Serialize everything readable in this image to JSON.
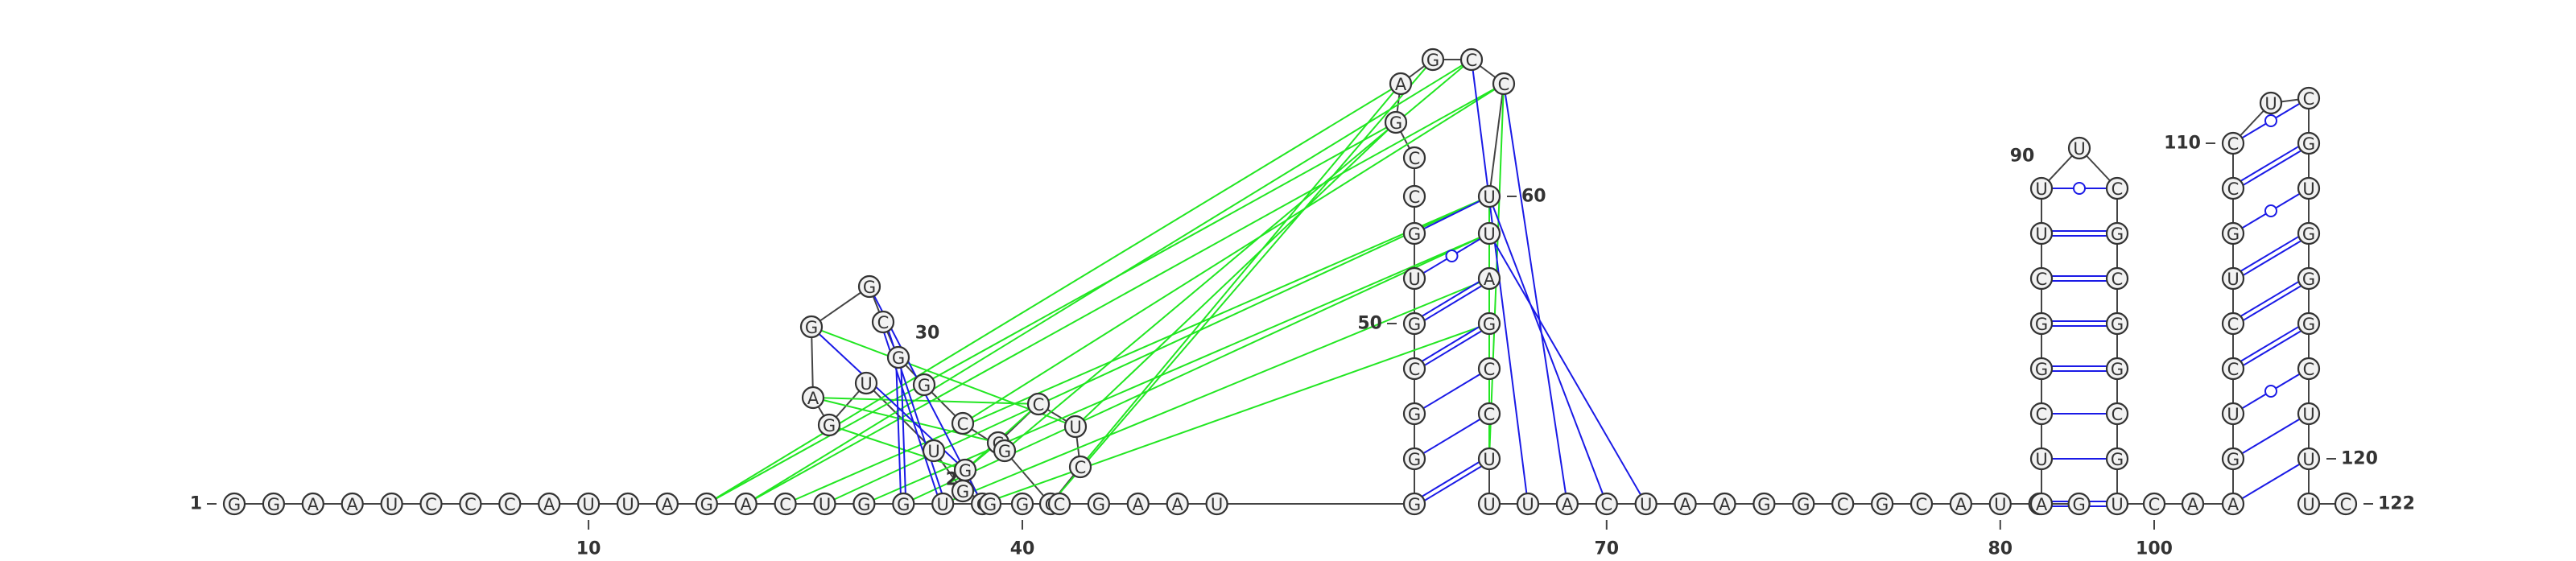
{
  "sequence": "GGAAUCCCAUUAGACUGGUCGGAGUUGGGCGGAGAAGAGCUGAACGGGGUACUUGGCGGGCGGCUACCGCUGCAGCGUUGAAGAGAGACGAGAAAUCUGAGUGAGGGUGGGUCGAAGCCAGGUCCG",
  "display_sequence": [
    "G",
    "G",
    "A",
    "A",
    "U",
    "C",
    "C",
    "C",
    "A",
    "U",
    "U",
    "A",
    "G",
    "A",
    "C",
    "U",
    "G",
    "G",
    "U",
    "C",
    "G",
    "C",
    "C",
    "U",
    "C",
    "C",
    "G",
    "C",
    "G",
    "G",
    "C",
    "G",
    "G",
    "A",
    "G",
    "U",
    "U",
    "G",
    "G",
    "G",
    "C",
    "G",
    "A",
    "A",
    "U",
    "G",
    "G",
    "G",
    "C",
    "G",
    "U",
    "G",
    "C",
    "C",
    "G",
    "A",
    "G",
    "C",
    "C",
    "U",
    "U",
    "A",
    "G",
    "C",
    "C",
    "U",
    "U",
    "U",
    "A",
    "C",
    "U",
    "A",
    "A",
    "G",
    "G",
    "C",
    "G",
    "C",
    "A",
    "U",
    "C",
    "G",
    "A",
    "U",
    "C",
    "G",
    "G",
    "C",
    "U",
    "U",
    "U",
    "C",
    "G",
    "C",
    "G",
    "G",
    "C",
    "G",
    "U",
    "C",
    "A",
    "A",
    "G",
    "U",
    "C",
    "C",
    "U",
    "G",
    "C",
    "C",
    "U",
    "C",
    "G",
    "U",
    "G",
    "G",
    "G",
    "C",
    "U",
    "U",
    "U",
    "C"
  ],
  "position_labels": [
    {
      "num": 1,
      "text": "1",
      "dash": "right"
    },
    {
      "num": 10,
      "text": "10",
      "dash": "tick"
    },
    {
      "num": 20,
      "text": "20",
      "dash": "none"
    },
    {
      "num": 30,
      "text": "30",
      "dash": "none"
    },
    {
      "num": 40,
      "text": "40",
      "dash": "tick"
    },
    {
      "num": 50,
      "text": "50",
      "dash": "right"
    },
    {
      "num": 60,
      "text": "60",
      "dash": "left"
    },
    {
      "num": 70,
      "text": "70",
      "dash": "tick"
    },
    {
      "num": 80,
      "text": "80",
      "dash": "tick"
    },
    {
      "num": 90,
      "text": "90",
      "dash": "none"
    },
    {
      "num": 100,
      "text": "100",
      "dash": "tick"
    },
    {
      "num": 110,
      "text": "110",
      "dash": "right"
    },
    {
      "num": 120,
      "text": "120",
      "dash": "left"
    },
    {
      "num": 122,
      "text": "122",
      "dash": "left"
    }
  ],
  "colors": {
    "canonical_pair": "#1a1ae6",
    "tertiary_interaction": "#22e622",
    "nucleotide_fill": "#f2f2f2",
    "nucleotide_stroke": "#333333",
    "backbone": "#444444"
  },
  "base_pairs": [
    {
      "i": 46,
      "j": 66,
      "type": "canonical",
      "bond": "double"
    },
    {
      "i": 47,
      "j": 65,
      "type": "canonical",
      "bond": "single"
    },
    {
      "i": 48,
      "j": 64,
      "type": "canonical",
      "bond": "single"
    },
    {
      "i": 49,
      "j": 63,
      "type": "canonical",
      "bond": "double"
    },
    {
      "i": 50,
      "j": 62,
      "type": "canonical",
      "bond": "double"
    },
    {
      "i": 51,
      "j": 61,
      "type": "wobble",
      "bond": "circle"
    },
    {
      "i": 52,
      "j": 60,
      "type": "canonical",
      "bond": "single"
    },
    {
      "i": 83,
      "j": 99,
      "type": "canonical",
      "bond": "double"
    },
    {
      "i": 84,
      "j": 98,
      "type": "canonical",
      "bond": "single"
    },
    {
      "i": 85,
      "j": 97,
      "type": "canonical",
      "bond": "single"
    },
    {
      "i": 86,
      "j": 96,
      "type": "canonical",
      "bond": "double"
    },
    {
      "i": 87,
      "j": 95,
      "type": "canonical",
      "bond": "double"
    },
    {
      "i": 88,
      "j": 94,
      "type": "canonical",
      "bond": "double"
    },
    {
      "i": 89,
      "j": 93,
      "type": "canonical",
      "bond": "double"
    },
    {
      "i": 90,
      "j": 92,
      "type": "wobble",
      "bond": "circle"
    },
    {
      "i": 102,
      "j": 120,
      "type": "canonical",
      "bond": "single"
    },
    {
      "i": 103,
      "j": 119,
      "type": "canonical",
      "bond": "single"
    },
    {
      "i": 104,
      "j": 118,
      "type": "wobble",
      "bond": "circle"
    },
    {
      "i": 105,
      "j": 117,
      "type": "canonical",
      "bond": "double"
    },
    {
      "i": 106,
      "j": 116,
      "type": "canonical",
      "bond": "double"
    },
    {
      "i": 107,
      "j": 115,
      "type": "canonical",
      "bond": "double"
    },
    {
      "i": 108,
      "j": 114,
      "type": "wobble",
      "bond": "circle"
    },
    {
      "i": 109,
      "j": 113,
      "type": "canonical",
      "bond": "double"
    },
    {
      "i": 110,
      "j": 112,
      "type": "wobble",
      "bond": "circle"
    },
    {
      "i": 18,
      "j": 30,
      "type": "canonical",
      "bond": "double"
    },
    {
      "i": 19,
      "j": 31,
      "type": "canonical",
      "bond": "double"
    },
    {
      "i": 20,
      "j": 32,
      "type": "canonical",
      "bond": "single"
    },
    {
      "i": 21,
      "j": 33,
      "type": "canonical",
      "bond": "single"
    },
    {
      "i": 58,
      "j": 68,
      "type": "canonical",
      "bond": "single"
    },
    {
      "i": 59,
      "j": 69,
      "type": "canonical",
      "bond": "single"
    },
    {
      "i": 60,
      "j": 70,
      "type": "canonical",
      "bond": "single"
    },
    {
      "i": 61,
      "j": 71,
      "type": "canonical",
      "bond": "single"
    }
  ],
  "tertiary_interactions": [
    {
      "i": 13,
      "j": 55
    },
    {
      "i": 13,
      "j": 56
    },
    {
      "i": 14,
      "j": 58
    },
    {
      "i": 14,
      "j": 59
    },
    {
      "i": 15,
      "j": 60
    },
    {
      "i": 16,
      "j": 60
    },
    {
      "i": 17,
      "j": 61
    },
    {
      "i": 18,
      "j": 61
    },
    {
      "i": 19,
      "j": 62
    },
    {
      "i": 20,
      "j": 63
    },
    {
      "i": 21,
      "j": 23
    },
    {
      "i": 21,
      "j": 35
    },
    {
      "i": 22,
      "j": 34
    },
    {
      "i": 23,
      "j": 34
    },
    {
      "i": 24,
      "j": 33
    },
    {
      "i": 24,
      "j": 55
    },
    {
      "i": 25,
      "j": 56
    },
    {
      "i": 26,
      "j": 57
    },
    {
      "i": 27,
      "j": 58
    },
    {
      "i": 28,
      "j": 59
    },
    {
      "i": 21,
      "j": 22
    },
    {
      "i": 59,
      "j": 66
    },
    {
      "i": 60,
      "j": 66
    },
    {
      "i": 61,
      "j": 66
    }
  ]
}
